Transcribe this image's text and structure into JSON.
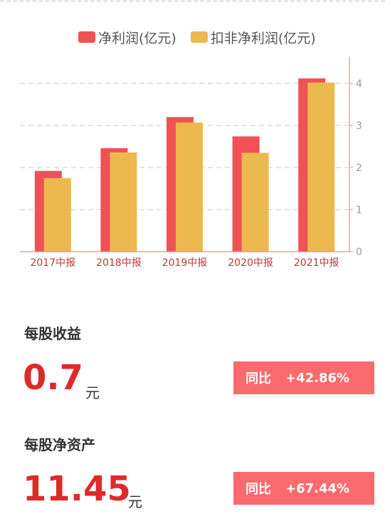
{
  "chart_data": {
    "type": "bar",
    "categories": [
      "2017中报",
      "2018中报",
      "2019中报",
      "2020中报",
      "2021中报"
    ],
    "series": [
      {
        "name": "净利润(亿元)",
        "color": "#ef5155",
        "values": [
          1.92,
          2.46,
          3.2,
          2.74,
          4.12
        ]
      },
      {
        "name": "扣非净利润(亿元)",
        "color": "#ecb94f",
        "values": [
          1.75,
          2.36,
          3.07,
          2.35,
          4.02
        ]
      }
    ],
    "y_ticks": [
      0,
      1,
      2,
      3,
      4
    ],
    "ylim": [
      0,
      4.5
    ],
    "y_axis_side": "right",
    "grid": true,
    "legend_position": "top"
  },
  "metrics": [
    {
      "title": "每股收益",
      "value": "0.7",
      "unit": "元",
      "yoy_label": "同比",
      "yoy_value": "+42.86%"
    },
    {
      "title": "每股净资产",
      "value": "11.45",
      "unit": "元",
      "yoy_label": "同比",
      "yoy_value": "+67.44%"
    }
  ]
}
